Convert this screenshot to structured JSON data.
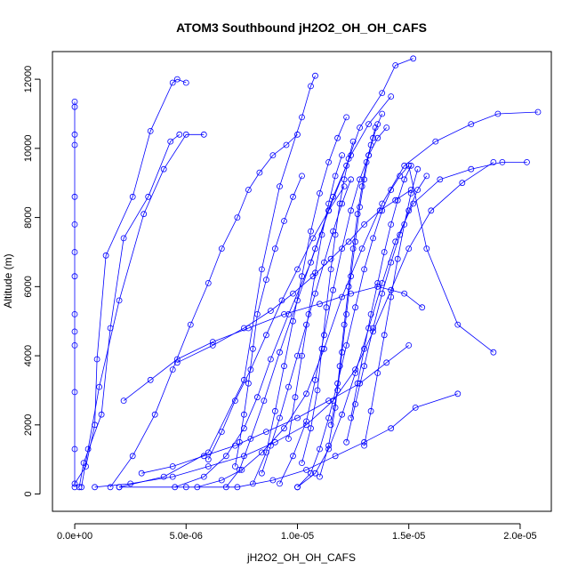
{
  "chart_data": {
    "type": "scatter",
    "title": "ATOM3 Southbound jH2O2_OH_OH_CAFS",
    "xlabel": "jH2O2_OH_OH_CAFS",
    "ylabel": "Altitude (m)",
    "xlim": [
      0,
      2.1e-05
    ],
    "ylim": [
      0,
      12800
    ],
    "x_ticks": [
      0,
      5e-06,
      1e-05,
      1.5e-05,
      2e-05
    ],
    "x_tick_labels": [
      "0.0e+00",
      "5.0e-06",
      "1.0e-05",
      "1.5e-05",
      "2.0e-05"
    ],
    "y_ticks": [
      0,
      2000,
      4000,
      6000,
      8000,
      10000,
      12000
    ],
    "y_tick_labels": [
      "0",
      "2000",
      "4000",
      "6000",
      "8000",
      "10000",
      "12000"
    ],
    "grid": false,
    "legend": "none",
    "color": "#0000ff",
    "marker": "open-circle",
    "connected": true,
    "series": [
      {
        "x": [
          0.0,
          0.0,
          0.0,
          0.0,
          0.0,
          0.0,
          0.0,
          0.0,
          0.0,
          0.0,
          0.0,
          0.0,
          0.0,
          0.0
        ],
        "y": [
          200,
          1300,
          2950,
          4300,
          4700,
          5200,
          6300,
          7000,
          7800,
          8600,
          10100,
          10400,
          11200,
          11350
        ]
      },
      {
        "x": [
          2e-07,
          4e-07,
          1.2e-06,
          1.6e-06,
          2.2e-06,
          3.3e-06,
          4.3e-06,
          4.7e-06
        ],
        "y": [
          200,
          900,
          2300,
          4800,
          7400,
          8600,
          10200,
          10400
        ]
      },
      {
        "x": [
          0.0,
          5e-07,
          9e-07,
          1e-06,
          1.4e-06,
          2.6e-06,
          3.4e-06,
          4.4e-06,
          4.6e-06,
          5e-06
        ],
        "y": [
          300,
          800,
          2000,
          3900,
          6900,
          8600,
          10500,
          11900,
          12000,
          11900
        ]
      },
      {
        "x": [
          3e-07,
          6e-07,
          1.1e-06,
          2e-06,
          3.1e-06,
          4e-06,
          5e-06,
          5.8e-06
        ],
        "y": [
          200,
          1300,
          3100,
          5600,
          8100,
          9400,
          10400,
          10400
        ]
      },
      {
        "x": [
          2e-06,
          4e-06,
          6e-06,
          7.6e-06,
          8.4e-06,
          9.2e-06,
          1.02e-05,
          1.06e-05,
          1.08e-05
        ],
        "y": [
          200,
          500,
          1200,
          3300,
          6500,
          8900,
          10900,
          11800,
          12100
        ]
      },
      {
        "x": [
          4.5e-06,
          5.8e-06,
          6.8e-06,
          7.6e-06,
          8.2e-06,
          8.8e-06,
          9.6e-06,
          1.06e-05,
          1.14e-05,
          1.22e-05,
          1.28e-05,
          1.38e-05,
          1.44e-05,
          1.52e-05
        ],
        "y": [
          200,
          500,
          1100,
          1900,
          2800,
          3900,
          5200,
          6700,
          8200,
          9500,
          10600,
          11600,
          12400,
          12600
        ]
      },
      {
        "x": [
          6.8e-06,
          7.4e-06,
          7.9e-06,
          8.5e-06,
          9.2e-06,
          1e-05,
          1.08e-05,
          1.16e-05,
          1.24e-05,
          1.32e-05,
          1.42e-05
        ],
        "y": [
          200,
          700,
          1600,
          2700,
          4100,
          5600,
          7100,
          8600,
          9800,
          10700,
          11500
        ]
      },
      {
        "x": [
          5.5e-06,
          6.6e-06,
          7.5e-06,
          8.4e-06,
          9.4e-06,
          1.04e-05,
          1.12e-05,
          1.2e-05,
          1.29e-05,
          1.38e-05,
          1.48e-05,
          1.62e-05,
          1.78e-05,
          1.9e-05,
          2.08e-05
        ],
        "y": [
          200,
          400,
          700,
          1200,
          1900,
          2900,
          4200,
          5700,
          7100,
          8400,
          9500,
          10200,
          10700,
          11000,
          11050
        ]
      },
      {
        "x": [
          9e-07,
          2.5e-06,
          4.4e-06,
          6e-06,
          7.6e-06,
          9e-06,
          1.04e-05,
          1.16e-05,
          1.26e-05,
          1.34e-05,
          1.42e-05,
          1.5e-05,
          1.6e-05,
          1.74e-05,
          1.88e-05
        ],
        "y": [
          200,
          300,
          500,
          800,
          1100,
          1500,
          2000,
          2700,
          3600,
          4700,
          5900,
          7100,
          8200,
          9000,
          9600
        ]
      },
      {
        "x": [
          1e-05,
          1.06e-05,
          1.1e-05,
          1.14e-05,
          1.18e-05,
          1.22e-05,
          1.26e-05,
          1.3e-05,
          1.34e-05,
          1.38e-05,
          1.42e-05,
          1.46e-05,
          1.5e-05,
          1.58e-05,
          1.72e-05,
          1.88e-05
        ],
        "y": [
          200,
          600,
          1300,
          2200,
          3200,
          4300,
          5400,
          6500,
          7400,
          8200,
          8800,
          9200,
          9500,
          7100,
          4900,
          4100
        ]
      },
      {
        "x": [
          1e-05,
          1.08e-05,
          1.14e-05,
          1.2e-05,
          1.26e-05,
          1.32e-05,
          1.38e-05,
          1.44e-05,
          1.52e-05,
          1.64e-05,
          1.78e-05,
          1.92e-05,
          2.03e-05
        ],
        "y": [
          200,
          600,
          1300,
          2300,
          3500,
          4800,
          6100,
          7300,
          8400,
          9100,
          9400,
          9600,
          9600
        ]
      },
      {
        "x": [
          2e-06,
          5e-06,
          7.3e-06,
          8.9e-06,
          1.04e-05,
          1.17e-05,
          1.3e-05,
          1.42e-05,
          1.53e-05,
          1.72e-05
        ],
        "y": [
          200,
          200,
          200,
          400,
          700,
          1100,
          1500,
          1900,
          2500,
          2900
        ]
      },
      {
        "x": [
          9.2e-06,
          9.8e-06,
          1.04e-05,
          1.08e-05,
          1.12e-05,
          1.16e-05,
          1.2e-05,
          1.24e-05,
          1.28e-05,
          1.32e-05,
          1.36e-05,
          1.4e-05
        ],
        "y": [
          300,
          1100,
          2100,
          3300,
          4600,
          5900,
          7100,
          8200,
          9100,
          9800,
          10300,
          10600
        ]
      },
      {
        "x": [
          8e-06,
          8.6e-06,
          9e-06,
          9.4e-06,
          9.8e-06,
          1.02e-05,
          1.06e-05,
          1.1e-05,
          1.14e-05,
          1.18e-05,
          1.22e-05
        ],
        "y": [
          300,
          1200,
          2400,
          3700,
          5000,
          6300,
          7600,
          8700,
          9600,
          10300,
          10900
        ]
      },
      {
        "x": [
          1.6e-06,
          2.6e-06,
          3.6e-06,
          4.4e-06,
          5.2e-06,
          6e-06,
          6.6e-06,
          7.3e-06,
          7.8e-06,
          8.3e-06,
          8.9e-06,
          9.5e-06,
          1e-05
        ],
        "y": [
          200,
          1100,
          2300,
          3600,
          4900,
          6100,
          7100,
          8000,
          8800,
          9300,
          9800,
          10100,
          10400
        ]
      },
      {
        "x": [
          1.1e-05,
          1.14e-05,
          1.17e-05,
          1.19e-05,
          1.21e-05,
          1.23e-05,
          1.25e-05,
          1.27e-05,
          1.29e-05,
          1.31e-05,
          1.33e-05,
          1.35e-05
        ],
        "y": [
          500,
          1400,
          2500,
          3700,
          4900,
          6000,
          7100,
          8100,
          8900,
          9600,
          10100,
          10600
        ]
      },
      {
        "x": [
          1.02e-05,
          1.06e-05,
          1.09e-05,
          1.11e-05,
          1.13e-05,
          1.15e-05,
          1.17e-05,
          1.19e-05,
          1.21e-05,
          1.23e-05,
          1.25e-05
        ],
        "y": [
          900,
          1900,
          3000,
          4200,
          5400,
          6500,
          7500,
          8400,
          9100,
          9700,
          10200
        ]
      },
      {
        "x": [
          1.22e-05,
          1.26e-05,
          1.3e-05,
          1.34e-05,
          1.38e-05,
          1.42e-05,
          1.46e-05,
          1.5e-05,
          1.54e-05,
          1.58e-05
        ],
        "y": [
          1500,
          2600,
          3700,
          4800,
          5800,
          6700,
          7500,
          8200,
          8800,
          9200
        ]
      },
      {
        "x": [
          1.15e-05,
          1.18e-05,
          1.2e-05,
          1.22e-05,
          1.24e-05,
          1.26e-05,
          1.28e-05,
          1.3e-05,
          1.32e-05,
          1.34e-05,
          1.36e-05,
          1.38e-05
        ],
        "y": [
          2000,
          3000,
          4100,
          5200,
          6300,
          7300,
          8300,
          9100,
          9800,
          10300,
          10700,
          11000
        ]
      },
      {
        "x": [
          4.6e-06,
          6.2e-06,
          7.6e-06,
          8.8e-06,
          9.8e-06,
          1.07e-05,
          1.15e-05,
          1.23e-05,
          1.3e-05,
          1.37e-05,
          1.44e-05,
          1.51e-05
        ],
        "y": [
          3800,
          4300,
          4800,
          5300,
          5800,
          6300,
          6800,
          7300,
          7800,
          8200,
          8500,
          8800
        ]
      },
      {
        "x": [
          2.2e-06,
          3.4e-06,
          4.6e-06,
          6.2e-06,
          7.8e-06,
          9.4e-06,
          1.1e-05,
          1.24e-05,
          1.36e-05,
          1.48e-05,
          1.56e-05
        ],
        "y": [
          2700,
          3300,
          3900,
          4400,
          4800,
          5200,
          5500,
          5800,
          6000,
          5800,
          5400
        ]
      },
      {
        "x": [
          7.2e-06,
          7.4e-06,
          7.6e-06,
          7.8e-06,
          8e-06,
          8.2e-06,
          8.6e-06,
          9e-06,
          9.4e-06,
          9.8e-06,
          1.02e-05
        ],
        "y": [
          800,
          1500,
          2300,
          3200,
          4200,
          5200,
          6200,
          7100,
          7900,
          8600,
          9200
        ]
      },
      {
        "x": [
          1.24e-05,
          1.27e-05,
          1.3e-05,
          1.33e-05,
          1.36e-05,
          1.39e-05,
          1.42e-05,
          1.45e-05,
          1.48e-05,
          1.51e-05
        ],
        "y": [
          2200,
          3200,
          4200,
          5200,
          6100,
          7000,
          7800,
          8500,
          9100,
          9500
        ]
      },
      {
        "x": [
          9.6e-06,
          9.9e-06,
          1.02e-05,
          1.05e-05,
          1.08e-05,
          1.11e-05,
          1.14e-05,
          1.17e-05,
          1.2e-05
        ],
        "y": [
          1600,
          2800,
          4000,
          5200,
          6400,
          7500,
          8400,
          9200,
          9800
        ]
      },
      {
        "x": [
          6e-06,
          6.6e-06,
          7.2e-06,
          7.9e-06,
          8.6e-06,
          9.3e-06,
          1e-05,
          1.07e-05,
          1.14e-05,
          1.21e-05
        ],
        "y": [
          1000,
          1800,
          2700,
          3600,
          4600,
          5600,
          6500,
          7400,
          8200,
          8900
        ]
      },
      {
        "x": [
          3e-06,
          4.4e-06,
          5.8e-06,
          7.2e-06,
          8.6e-06,
          1e-05,
          1.14e-05,
          1.28e-05,
          1.4e-05,
          1.5e-05
        ],
        "y": [
          600,
          800,
          1100,
          1400,
          1800,
          2200,
          2700,
          3200,
          3800,
          4300
        ]
      },
      {
        "x": [
          1.3e-05,
          1.33e-05,
          1.36e-05,
          1.39e-05,
          1.42e-05,
          1.45e-05,
          1.48e-05,
          1.51e-05,
          1.54e-05
        ],
        "y": [
          1400,
          2400,
          3500,
          4600,
          5700,
          6800,
          7800,
          8700,
          9400
        ]
      },
      {
        "x": [
          8.4e-06,
          8.8e-06,
          9.2e-06,
          9.6e-06,
          1e-05,
          1.04e-05,
          1.08e-05,
          1.12e-05,
          1.16e-05,
          1.2e-05,
          1.24e-05
        ],
        "y": [
          600,
          1400,
          2200,
          3100,
          4000,
          4900,
          5800,
          6700,
          7600,
          8400,
          9100
        ]
      }
    ]
  }
}
